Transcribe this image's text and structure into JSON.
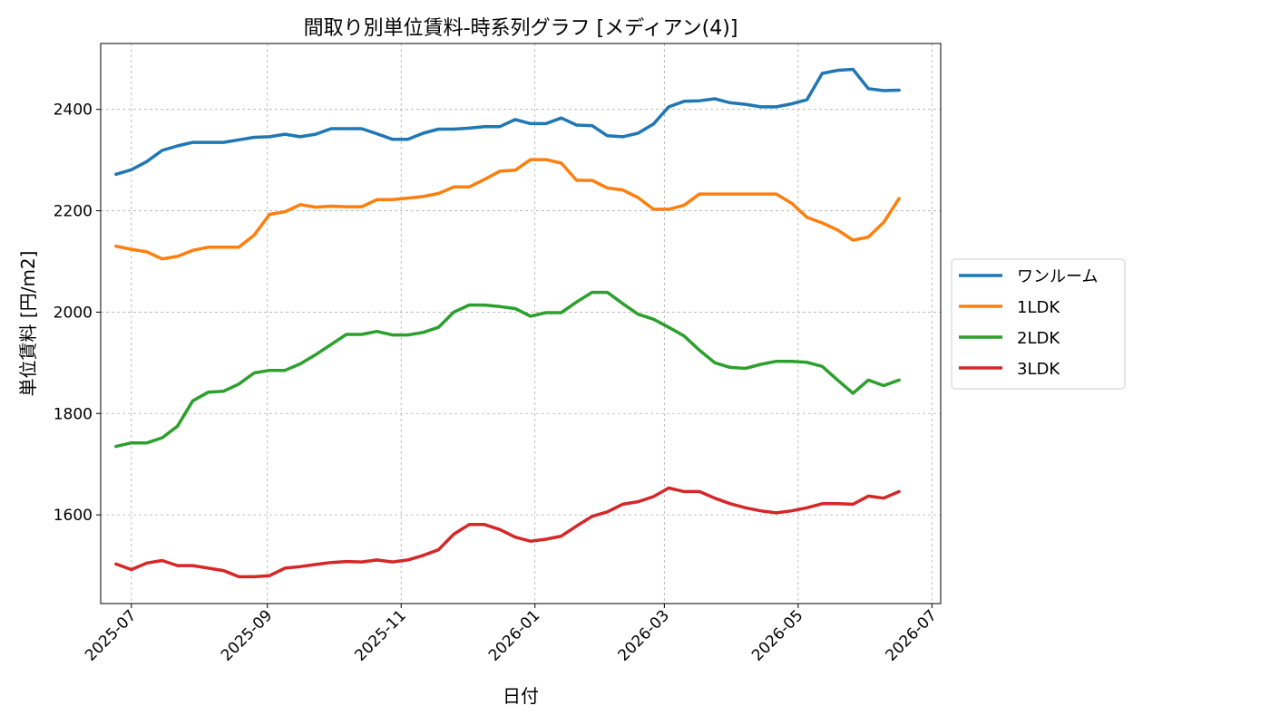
{
  "chart_data": {
    "type": "line",
    "title": "間取り別単位賃料-時系列グラフ [メディアン(4)]",
    "xlabel": "日付",
    "ylabel": "単位賃料 [円/m2]",
    "ylim": [
      1425,
      2530
    ],
    "yticks": [
      1600,
      1800,
      2000,
      2200,
      2400
    ],
    "xlim": [
      "2025-06-17",
      "2026-07-05"
    ],
    "xticks": [
      "2025-07",
      "2025-09",
      "2025-11",
      "2026-01",
      "2026-03",
      "2026-05",
      "2026-07"
    ],
    "grid": true,
    "legend_position": "right",
    "x": [
      "2025-06-24",
      "2025-07-01",
      "2025-07-08",
      "2025-07-15",
      "2025-07-22",
      "2025-07-29",
      "2025-08-05",
      "2025-08-12",
      "2025-08-19",
      "2025-08-26",
      "2025-09-02",
      "2025-09-09",
      "2025-09-16",
      "2025-09-23",
      "2025-09-30",
      "2025-10-07",
      "2025-10-14",
      "2025-10-21",
      "2025-10-28",
      "2025-11-04",
      "2025-11-11",
      "2025-11-18",
      "2025-11-25",
      "2025-12-02",
      "2025-12-09",
      "2025-12-16",
      "2025-12-23",
      "2025-12-30",
      "2026-01-06",
      "2026-01-13",
      "2026-01-20",
      "2026-01-27",
      "2026-02-03",
      "2026-02-10",
      "2026-02-17",
      "2026-02-24",
      "2026-03-03",
      "2026-03-10",
      "2026-03-17",
      "2026-03-24",
      "2026-03-31",
      "2026-04-07",
      "2026-04-14",
      "2026-04-21",
      "2026-04-28",
      "2026-05-05",
      "2026-05-12",
      "2026-05-19",
      "2026-05-26",
      "2026-06-02",
      "2026-06-09",
      "2026-06-16"
    ],
    "series": [
      {
        "name": "ワンルーム",
        "color": "#1f77b4",
        "values": [
          2272,
          2281,
          2297,
          2319,
          2328,
          2335,
          2335,
          2335,
          2340,
          2345,
          2346,
          2351,
          2346,
          2351,
          2362,
          2362,
          2362,
          2352,
          2341,
          2341,
          2353,
          2361,
          2361,
          2363,
          2366,
          2366,
          2380,
          2372,
          2372,
          2383,
          2369,
          2368,
          2348,
          2346,
          2353,
          2371,
          2405,
          2416,
          2417,
          2421,
          2413,
          2410,
          2405,
          2405,
          2411,
          2419,
          2471,
          2477,
          2479,
          2441,
          2437,
          2438
        ]
      },
      {
        "name": "1LDK",
        "color": "#ff7f0e",
        "values": [
          2130,
          2124,
          2119,
          2105,
          2110,
          2122,
          2128,
          2128,
          2128,
          2152,
          2193,
          2198,
          2212,
          2207,
          2209,
          2208,
          2208,
          2222,
          2222,
          2225,
          2228,
          2234,
          2247,
          2247,
          2262,
          2278,
          2280,
          2301,
          2301,
          2294,
          2260,
          2260,
          2245,
          2241,
          2226,
          2203,
          2203,
          2211,
          2233,
          2233,
          2233,
          2233,
          2233,
          2233,
          2215,
          2187,
          2176,
          2162,
          2142,
          2148,
          2177,
          2224
        ]
      },
      {
        "name": "2LDK",
        "color": "#2ca02c",
        "values": [
          1735,
          1742,
          1742,
          1752,
          1775,
          1825,
          1842,
          1844,
          1858,
          1880,
          1885,
          1885,
          1898,
          1916,
          1936,
          1956,
          1956,
          1962,
          1955,
          1955,
          1960,
          1970,
          2000,
          2014,
          2014,
          2011,
          2007,
          1992,
          1999,
          1999,
          2020,
          2039,
          2039,
          2017,
          1996,
          1986,
          1970,
          1953,
          1925,
          1900,
          1891,
          1889,
          1897,
          1903,
          1903,
          1901,
          1893,
          1866,
          1840,
          1866,
          1855,
          1866
        ]
      },
      {
        "name": "3LDK",
        "color": "#d62728",
        "values": [
          1503,
          1492,
          1505,
          1510,
          1500,
          1500,
          1495,
          1490,
          1478,
          1478,
          1480,
          1495,
          1498,
          1502,
          1506,
          1508,
          1507,
          1511,
          1507,
          1511,
          1520,
          1531,
          1562,
          1581,
          1581,
          1571,
          1556,
          1548,
          1552,
          1558,
          1578,
          1597,
          1606,
          1621,
          1626,
          1636,
          1653,
          1646,
          1646,
          1633,
          1622,
          1614,
          1608,
          1604,
          1608,
          1614,
          1622,
          1622,
          1621,
          1637,
          1633,
          1646
        ]
      }
    ]
  }
}
